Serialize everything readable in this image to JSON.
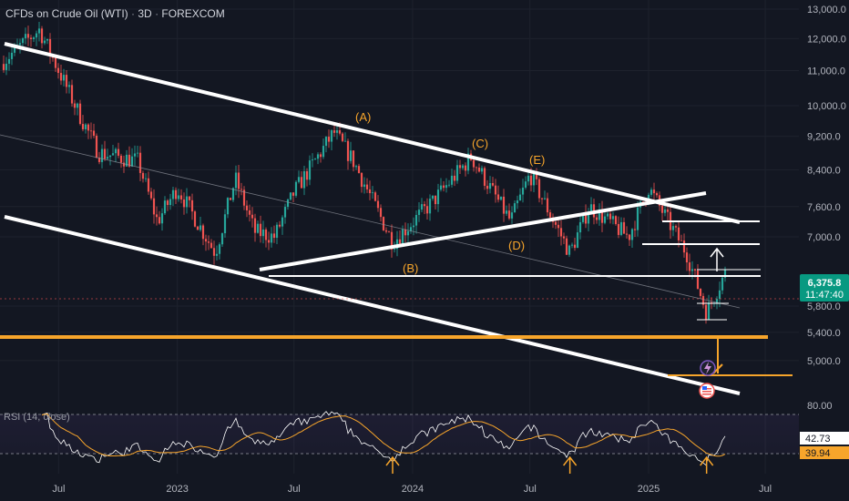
{
  "header": {
    "symbol": "CFDs on Crude Oil (WTI)",
    "interval": "3D",
    "exchange": "FOREXCOM"
  },
  "colors": {
    "background": "#131722",
    "up": "#26a69a",
    "down": "#ef5350",
    "orange": "#f7a52b",
    "white": "#ffffff",
    "price_tag": "#089981",
    "rsi_line": "#ffffff",
    "rsi_ma": "#f7a52b"
  },
  "icons": [
    "lightning-icon",
    "us-flag-icon",
    "arrow-up-icon"
  ],
  "chart_data": {
    "type": "candlestick",
    "title": "",
    "xlabel": "",
    "ylabel": "",
    "price_axis_scale": "log",
    "ylim": [
      4700,
      13000
    ],
    "price_ticks": [
      "13,000.0",
      "12,000.0",
      "11,000.0",
      "10,000.0",
      "9,200.0",
      "8,400.0",
      "7,600.0",
      "7,000.0",
      "5,800.0",
      "5,400.0",
      "5,000.0"
    ],
    "time_ticks": [
      "Jul",
      "2023",
      "Jul",
      "2024",
      "Jul",
      "2025",
      "Jul"
    ],
    "last_price": "6,375.8",
    "countdown": "11:47:40",
    "price_path": [
      [
        "2022-04",
        11200
      ],
      [
        "2022-06",
        12300
      ],
      [
        "2022-08",
        9800
      ],
      [
        "2022-09",
        8800
      ],
      [
        "2022-11",
        8600
      ],
      [
        "2022-12",
        7300
      ],
      [
        "2023-01",
        8000
      ],
      [
        "2023-03",
        6700
      ],
      [
        "2023-04",
        8200
      ],
      [
        "2023-05",
        7100
      ],
      [
        "2023-06",
        7000
      ],
      [
        "2023-07",
        7900
      ],
      [
        "2023-09",
        9300
      ],
      [
        "2023-10",
        8600
      ],
      [
        "2023-12",
        6900
      ],
      [
        "2024-02",
        7700
      ],
      [
        "2024-04",
        8700
      ],
      [
        "2024-06",
        7300
      ],
      [
        "2024-07",
        8300
      ],
      [
        "2024-09",
        6700
      ],
      [
        "2024-10",
        7600
      ],
      [
        "2024-12",
        7000
      ],
      [
        "2025-01",
        8000
      ],
      [
        "2025-03",
        6700
      ],
      [
        "2025-04",
        5700
      ],
      [
        "2025-05",
        6376
      ]
    ],
    "wave_labels": [
      {
        "label": "(A)",
        "time": "2023-09"
      },
      {
        "label": "(B)",
        "time": "2023-12"
      },
      {
        "label": "(C)",
        "time": "2024-04"
      },
      {
        "label": "(D)",
        "time": "2024-06"
      },
      {
        "label": "(E)",
        "time": "2024-08"
      }
    ],
    "horizontal_levels": [
      {
        "price": 5480,
        "color": "orange"
      },
      {
        "price": 4980,
        "color": "orange"
      },
      {
        "price": 6550,
        "color": "white"
      },
      {
        "price": 7050,
        "color": "white"
      },
      {
        "price": 7450,
        "color": "white"
      }
    ],
    "rsi": {
      "label": "RSI (14, close)",
      "bands": [
        70,
        30
      ],
      "band_label": "80.00",
      "value": "42.73",
      "ma_value": "39.94",
      "bottoms": [
        "2023-12",
        "2024-09",
        "2025-04"
      ]
    }
  }
}
